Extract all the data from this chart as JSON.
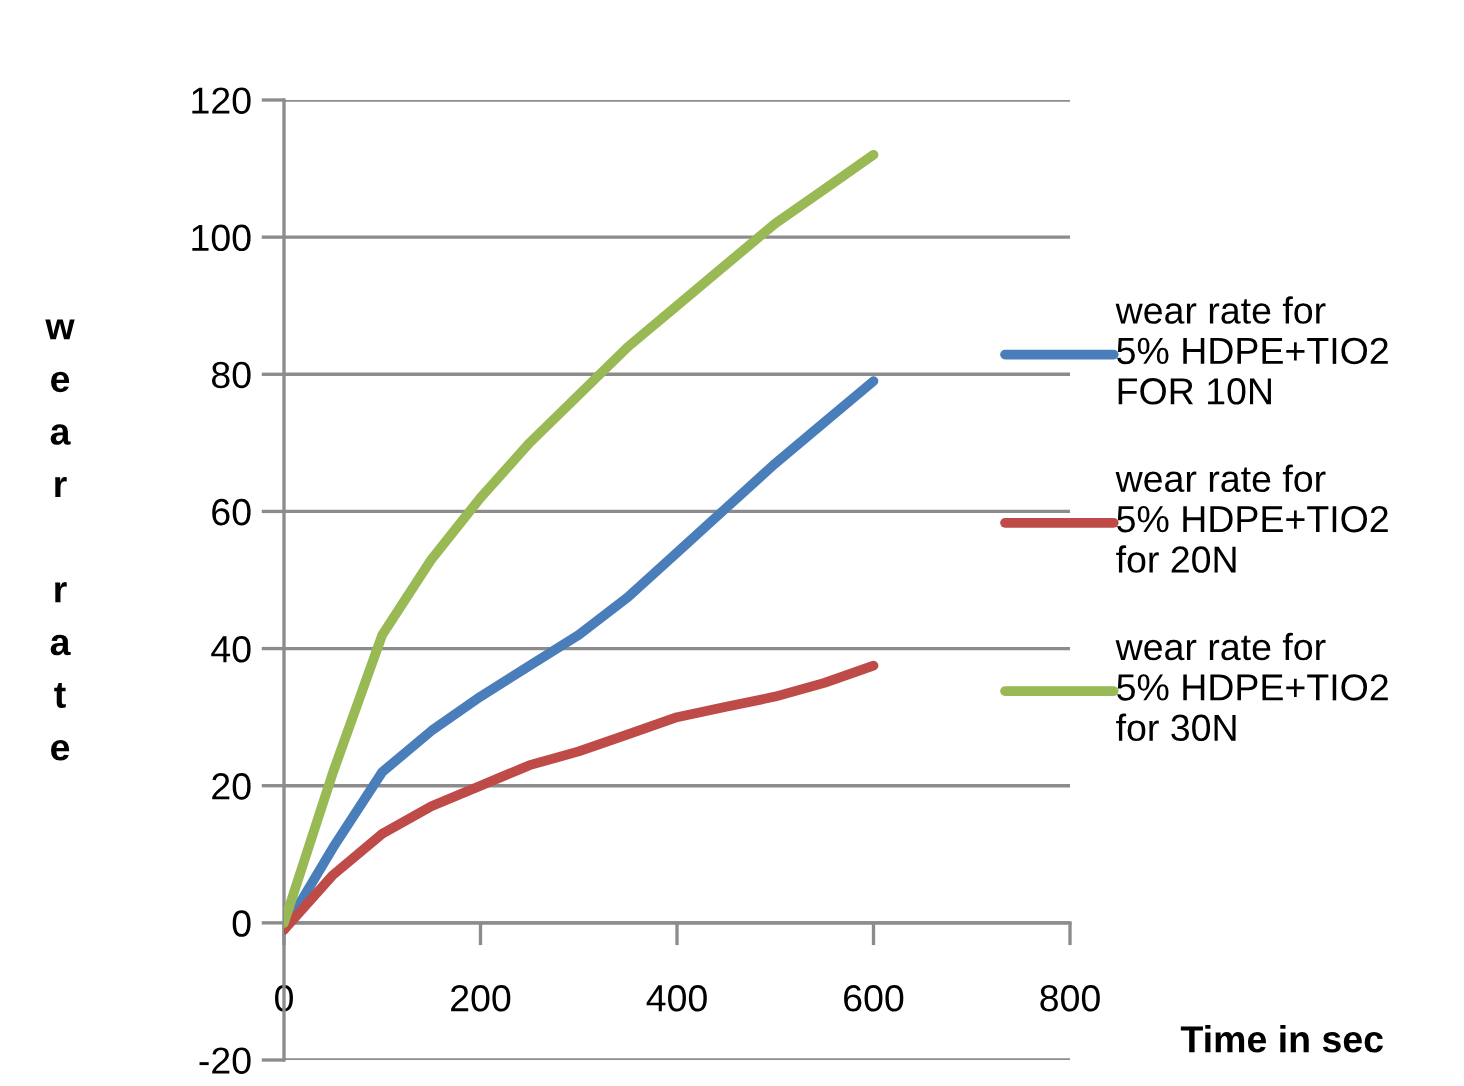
{
  "chart_data": {
    "type": "line",
    "xlabel": "Time in sec",
    "ylabel": "wear rate",
    "xlim": [
      0,
      800
    ],
    "xticks": [
      0,
      200,
      400,
      600,
      800
    ],
    "ylim": [
      -20,
      120
    ],
    "yticks": [
      -20,
      0,
      20,
      40,
      60,
      80,
      100,
      120
    ],
    "grid": "y",
    "legend": "right",
    "marker": "none",
    "line_style": "solid",
    "series": [
      {
        "name": "wear rate for\n5% HDPE+TIO2\nFOR 10N",
        "color": "#4a7ebb",
        "x": [
          0,
          50,
          100,
          150,
          200,
          250,
          300,
          350,
          400,
          450,
          500,
          550,
          600
        ],
        "values": [
          -1,
          11,
          22,
          28,
          33,
          37.5,
          42,
          47.5,
          54,
          60.5,
          67,
          73,
          79
        ]
      },
      {
        "name": "wear rate for\n5% HDPE+TIO2\nfor 20N",
        "color": "#be4b48",
        "x": [
          0,
          50,
          100,
          150,
          200,
          250,
          300,
          350,
          400,
          450,
          500,
          550,
          600
        ],
        "values": [
          -1,
          7,
          13,
          17,
          20,
          23,
          25,
          27.5,
          30,
          31.5,
          33,
          35,
          37.5
        ]
      },
      {
        "name": "wear rate for\n5% HDPE+TIO2\nfor 30N",
        "color": "#98b954",
        "x": [
          0,
          50,
          100,
          150,
          200,
          250,
          300,
          350,
          400,
          450,
          500,
          550,
          600
        ],
        "values": [
          0,
          22,
          42,
          53,
          62,
          70,
          77,
          84,
          90,
          96,
          102,
          107,
          112
        ]
      }
    ]
  }
}
